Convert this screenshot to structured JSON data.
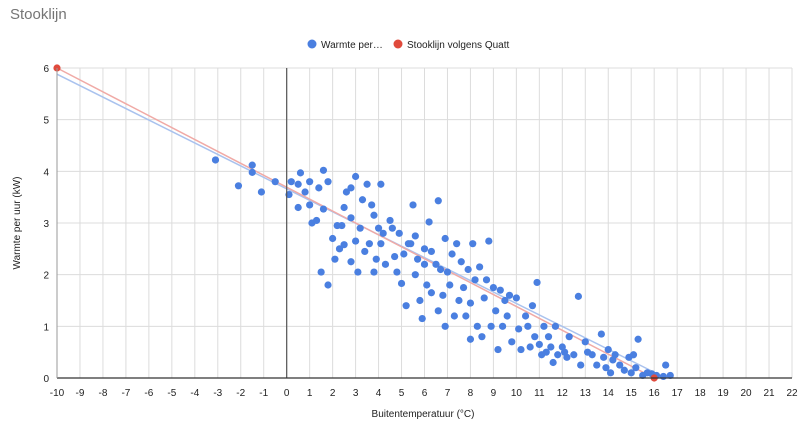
{
  "header": {
    "title": "Stooklijn"
  },
  "colors": {
    "series_warmte": "#4a7fe0",
    "series_stooklijn": "#e04a3c",
    "trend_warmte": "#a9c2ee",
    "trend_stooklijn": "#f0aaa6",
    "grid": "#dcdcdc",
    "zero_line": "#555555"
  },
  "chart_data": {
    "type": "scatter",
    "xlabel": "Buitentemperatuur (°C)",
    "ylabel": "Warmte per uur (kW)",
    "xlim": [
      -10,
      22
    ],
    "ylim": [
      0,
      6
    ],
    "xticks": [
      "-10",
      "-9",
      "-8",
      "-7",
      "-6",
      "-5",
      "-4",
      "-3",
      "-2",
      "-1",
      "0",
      "1",
      "2",
      "3",
      "4",
      "5",
      "6",
      "7",
      "8",
      "9",
      "10",
      "11",
      "12",
      "13",
      "14",
      "15",
      "16",
      "17",
      "18",
      "19",
      "20",
      "21",
      "22"
    ],
    "yticks": [
      "0",
      "1",
      "2",
      "3",
      "4",
      "5",
      "6"
    ],
    "legend_position": "top",
    "grid": true,
    "series": [
      {
        "name": "Warmte per…",
        "legend_label": "Warmte per…",
        "points": [
          [
            -3.1,
            4.22
          ],
          [
            -2.1,
            3.72
          ],
          [
            -1.5,
            4.12
          ],
          [
            -1.5,
            3.98
          ],
          [
            -1.1,
            3.6
          ],
          [
            -0.5,
            3.8
          ],
          [
            0.1,
            3.55
          ],
          [
            0.2,
            3.8
          ],
          [
            0.5,
            3.75
          ],
          [
            0.5,
            3.3
          ],
          [
            0.6,
            3.97
          ],
          [
            0.8,
            3.6
          ],
          [
            1.0,
            3.8
          ],
          [
            1.0,
            3.35
          ],
          [
            1.1,
            3.0
          ],
          [
            1.3,
            3.05
          ],
          [
            1.4,
            3.68
          ],
          [
            1.5,
            2.05
          ],
          [
            1.6,
            3.27
          ],
          [
            1.6,
            4.02
          ],
          [
            1.8,
            1.8
          ],
          [
            1.8,
            3.8
          ],
          [
            2.0,
            2.7
          ],
          [
            2.2,
            2.95
          ],
          [
            2.1,
            2.3
          ],
          [
            2.3,
            2.5
          ],
          [
            2.4,
            2.95
          ],
          [
            2.5,
            3.3
          ],
          [
            2.5,
            2.58
          ],
          [
            2.6,
            3.6
          ],
          [
            2.8,
            3.68
          ],
          [
            2.8,
            3.1
          ],
          [
            2.8,
            2.25
          ],
          [
            3.0,
            2.65
          ],
          [
            3.0,
            3.9
          ],
          [
            3.1,
            2.05
          ],
          [
            3.2,
            2.9
          ],
          [
            3.3,
            3.45
          ],
          [
            3.4,
            2.45
          ],
          [
            3.5,
            3.75
          ],
          [
            3.6,
            2.6
          ],
          [
            3.7,
            3.35
          ],
          [
            3.8,
            2.05
          ],
          [
            3.8,
            3.15
          ],
          [
            3.9,
            2.3
          ],
          [
            4.0,
            2.9
          ],
          [
            4.1,
            3.75
          ],
          [
            4.1,
            2.6
          ],
          [
            4.2,
            2.8
          ],
          [
            4.3,
            2.2
          ],
          [
            4.5,
            3.05
          ],
          [
            4.6,
            2.9
          ],
          [
            4.7,
            2.35
          ],
          [
            4.8,
            2.05
          ],
          [
            4.9,
            2.8
          ],
          [
            5.0,
            1.83
          ],
          [
            5.1,
            2.4
          ],
          [
            5.2,
            1.4
          ],
          [
            5.3,
            2.6
          ],
          [
            5.4,
            2.6
          ],
          [
            5.5,
            3.35
          ],
          [
            5.6,
            2.0
          ],
          [
            5.6,
            2.75
          ],
          [
            5.7,
            2.3
          ],
          [
            5.8,
            1.5
          ],
          [
            5.9,
            1.15
          ],
          [
            6.0,
            2.2
          ],
          [
            6.0,
            2.5
          ],
          [
            6.1,
            1.8
          ],
          [
            6.2,
            3.02
          ],
          [
            6.3,
            1.65
          ],
          [
            6.3,
            2.45
          ],
          [
            6.5,
            2.2
          ],
          [
            6.6,
            3.43
          ],
          [
            6.6,
            1.3
          ],
          [
            6.7,
            2.1
          ],
          [
            6.8,
            1.6
          ],
          [
            6.9,
            2.7
          ],
          [
            6.9,
            1.0
          ],
          [
            7.0,
            2.05
          ],
          [
            7.1,
            1.8
          ],
          [
            7.2,
            2.4
          ],
          [
            7.3,
            1.2
          ],
          [
            7.4,
            2.6
          ],
          [
            7.5,
            1.5
          ],
          [
            7.6,
            2.25
          ],
          [
            7.7,
            1.75
          ],
          [
            7.8,
            1.2
          ],
          [
            7.9,
            2.1
          ],
          [
            8.0,
            1.45
          ],
          [
            8.0,
            0.75
          ],
          [
            8.1,
            2.6
          ],
          [
            8.2,
            1.9
          ],
          [
            8.3,
            1.0
          ],
          [
            8.4,
            2.15
          ],
          [
            8.5,
            0.8
          ],
          [
            8.6,
            1.55
          ],
          [
            8.7,
            1.9
          ],
          [
            8.8,
            2.65
          ],
          [
            8.9,
            1.0
          ],
          [
            9.0,
            1.75
          ],
          [
            9.1,
            1.3
          ],
          [
            9.2,
            0.55
          ],
          [
            9.3,
            1.7
          ],
          [
            9.4,
            1.0
          ],
          [
            9.5,
            1.5
          ],
          [
            9.6,
            1.2
          ],
          [
            9.7,
            1.6
          ],
          [
            9.8,
            0.7
          ],
          [
            10.0,
            1.55
          ],
          [
            10.1,
            0.95
          ],
          [
            10.2,
            0.55
          ],
          [
            10.4,
            1.2
          ],
          [
            10.5,
            1.0
          ],
          [
            10.6,
            0.6
          ],
          [
            10.7,
            1.4
          ],
          [
            10.8,
            0.8
          ],
          [
            10.9,
            1.85
          ],
          [
            11.0,
            0.65
          ],
          [
            11.1,
            0.45
          ],
          [
            11.2,
            1.0
          ],
          [
            11.3,
            0.5
          ],
          [
            11.4,
            0.8
          ],
          [
            11.5,
            0.6
          ],
          [
            11.6,
            0.3
          ],
          [
            11.7,
            1.0
          ],
          [
            11.8,
            0.45
          ],
          [
            12.0,
            0.6
          ],
          [
            12.1,
            0.5
          ],
          [
            12.2,
            0.4
          ],
          [
            12.3,
            0.8
          ],
          [
            12.5,
            0.45
          ],
          [
            12.7,
            1.58
          ],
          [
            12.8,
            0.25
          ],
          [
            13.0,
            0.7
          ],
          [
            13.1,
            0.5
          ],
          [
            13.3,
            0.45
          ],
          [
            13.5,
            0.25
          ],
          [
            13.7,
            0.85
          ],
          [
            13.8,
            0.4
          ],
          [
            13.9,
            0.2
          ],
          [
            14.0,
            0.55
          ],
          [
            14.1,
            0.1
          ],
          [
            14.2,
            0.35
          ],
          [
            14.3,
            0.45
          ],
          [
            14.5,
            0.25
          ],
          [
            14.7,
            0.15
          ],
          [
            14.9,
            0.4
          ],
          [
            15.0,
            0.1
          ],
          [
            15.1,
            0.45
          ],
          [
            15.2,
            0.2
          ],
          [
            15.3,
            0.75
          ],
          [
            15.5,
            0.05
          ],
          [
            15.7,
            0.1
          ],
          [
            15.9,
            0.08
          ],
          [
            16.1,
            0.05
          ],
          [
            16.4,
            0.03
          ],
          [
            16.5,
            0.25
          ],
          [
            16.7,
            0.05
          ]
        ]
      },
      {
        "name": "Stooklijn volgens Quatt",
        "legend_label": "Stooklijn volgens Quatt",
        "points": [
          [
            -10,
            6.0
          ],
          [
            16,
            0.0
          ]
        ]
      }
    ],
    "trendlines": [
      {
        "series": "Warmte per…",
        "from": [
          -10,
          5.88
        ],
        "to": [
          16.5,
          0.0
        ]
      },
      {
        "series": "Stooklijn volgens Quatt",
        "from": [
          -10,
          6.0
        ],
        "to": [
          16,
          0.0
        ]
      }
    ]
  }
}
